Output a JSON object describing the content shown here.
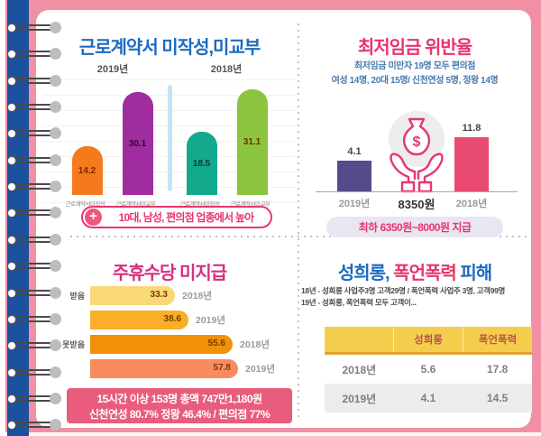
{
  "notebook": {
    "ring_count": 16
  },
  "colors": {
    "cover_pink": "#F18FA4",
    "spine_blue": "#1C519F",
    "title_blue": "#1E6BC0",
    "title_pink": "#E8356D",
    "title_magenta": "#D5307F",
    "banner_pink": "#E95C7C",
    "table_header_yellow": "#F5CD4D"
  },
  "panels": {
    "contract": {
      "title": "근로계약서 미작성,미교부",
      "callout_plus": "+",
      "callout": "10대, 남성, 편의점 업종에서 높아"
    },
    "minwage": {
      "title": "최저임금 위반율",
      "subtitle_line1": "최저임금 미만자 19명 모두 편의점",
      "subtitle_line2": "여성 14명, 20대 15명/ 신천연성 5명, 정왕 14명",
      "left_year": "2019년",
      "center_label": "8350원",
      "right_year": "2018년",
      "pill": "최하 6350원~8000원 지급",
      "money_icon": "money-bag-in-hands"
    },
    "allowance": {
      "title": "주휴수당 미지급",
      "banner_line1": "15시간 이상 153명 총액 747만1,180원",
      "banner_line2": "신천연성 80.7% 정왕 46.4% / 편의점 77%"
    },
    "harassment": {
      "title_part1": "성희롱,",
      "title_part2": " 폭언폭력",
      "title_part3": " 피해",
      "subtitle_line1": "18년 - 성희롱 사업주3명 고객29명 / 폭언폭력 사업주 3명, 고객99명",
      "subtitle_line2": "19년 - 성희롱, 폭언폭력 모두 고객이..."
    }
  },
  "chart_data": [
    {
      "id": "contract-violations",
      "type": "bar",
      "title": "근로계약서 미작성,미교부",
      "groups": [
        "2019년",
        "2018년"
      ],
      "ylim": [
        0,
        35
      ],
      "bars": [
        {
          "group": "2019년",
          "category": "근로계약서미작성",
          "value": 14.2,
          "color": "#F5791D",
          "value_color": "#7A2A00"
        },
        {
          "group": "2019년",
          "category": "근로계약서미교부",
          "value": 30.1,
          "color": "#A02DA0",
          "value_color": "#33052E"
        },
        {
          "group": "2018년",
          "category": "근로계약서미작성",
          "value": 18.5,
          "color": "#12A98C",
          "value_color": "#063B2E"
        },
        {
          "group": "2018년",
          "category": "근로계약서미교부",
          "value": 31.1,
          "color": "#8BC540",
          "value_color": "#7A2A00"
        }
      ]
    },
    {
      "id": "minimum-wage-violation-rate",
      "type": "bar",
      "title": "최저임금 위반율",
      "categories": [
        "2019년",
        "2018년"
      ],
      "values": [
        4.1,
        11.8
      ],
      "colors": [
        "#564A8B",
        "#E84A70"
      ],
      "center_label": "8350원",
      "footnote": "최하 6350원~8000원 지급"
    },
    {
      "id": "weekly-holiday-allowance-unpaid",
      "type": "bar",
      "orientation": "horizontal",
      "title": "주휴수당 미지급",
      "xlim": [
        0,
        60
      ],
      "bars": [
        {
          "group": "받음",
          "year": "2018년",
          "value": 33.3,
          "color": "#F9D877"
        },
        {
          "group": "받음",
          "year": "2019년",
          "value": 38.6,
          "color": "#FBAE27"
        },
        {
          "group": "못받음",
          "year": "2018년",
          "value": 55.6,
          "color": "#F09109"
        },
        {
          "group": "못받음",
          "year": "2019년",
          "value": 57.8,
          "color": "#F98C5F"
        }
      ]
    },
    {
      "id": "harassment-abuse-damage",
      "type": "table",
      "title": "성희롱, 폭언폭력 피해",
      "columns": [
        "",
        "성희롱",
        "폭언폭력"
      ],
      "rows": [
        [
          "2018년",
          "5.6",
          "17.8"
        ],
        [
          "2019년",
          "4.1",
          "14.5"
        ]
      ]
    }
  ]
}
